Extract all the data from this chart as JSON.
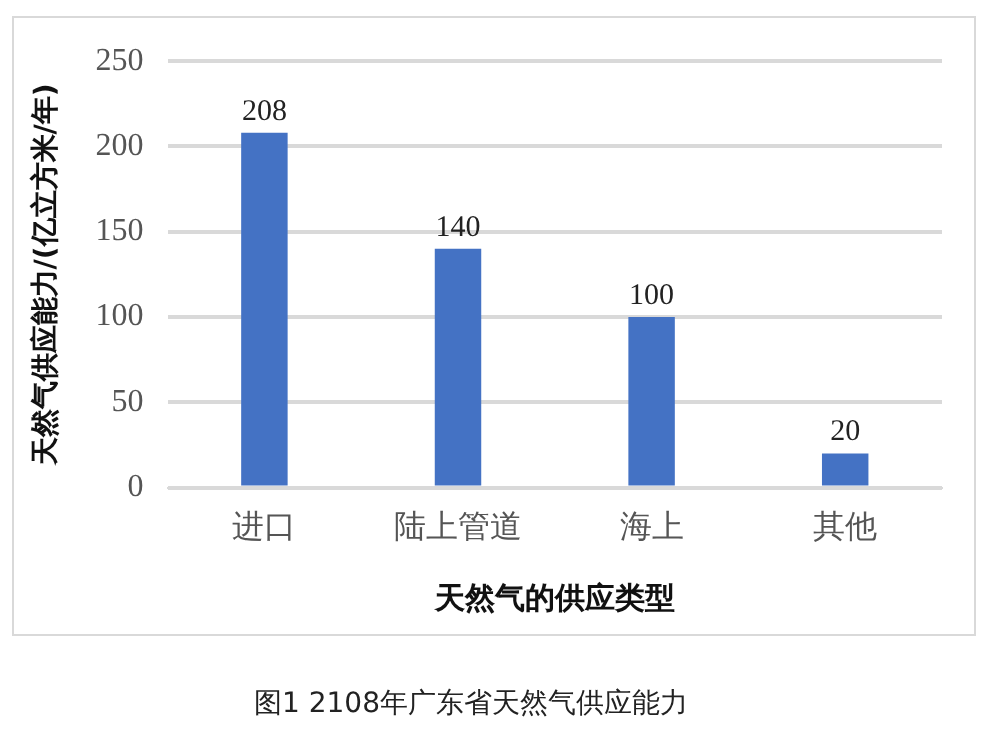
{
  "chart_data": {
    "type": "bar",
    "xlabel": "天然气的供应类型",
    "ylabel": "天然气供应能力/(亿立方米/年)",
    "categories": [
      "进口",
      "陆上管道",
      "海上",
      "其他"
    ],
    "values": [
      208,
      140,
      100,
      20
    ],
    "color": "#4472c4",
    "ylim": [
      0,
      250
    ],
    "yticks": [
      0,
      50,
      100,
      150,
      200,
      250
    ],
    "grid": "y",
    "data_labels": true,
    "annotations": [
      "图1 2108年广东省天然气供应能力"
    ]
  }
}
